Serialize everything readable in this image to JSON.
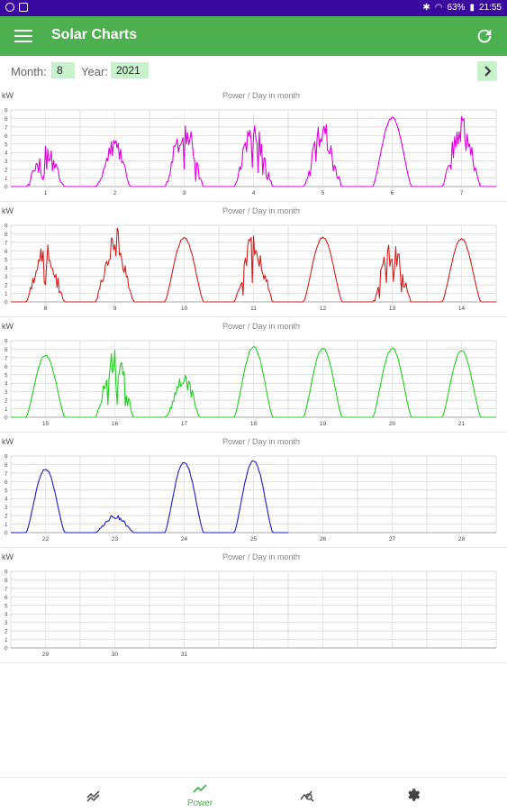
{
  "status_bar": {
    "battery": "63%",
    "time": "21:55"
  },
  "app": {
    "title": "Solar Charts"
  },
  "controls": {
    "month_label": "Month:",
    "month_value": "8",
    "year_label": "Year:",
    "year_value": "2021"
  },
  "bottom_nav": {
    "active_label": "Power"
  },
  "chart_data": [
    {
      "type": "line",
      "title": "Power / Day in month",
      "ylabel": "kW",
      "ylim": [
        0,
        9
      ],
      "yticks": [
        "0",
        "1",
        "2",
        "3",
        "4",
        "5",
        "6",
        "7",
        "8",
        "9"
      ],
      "day_labels": [
        "1",
        "2",
        "3",
        "4",
        "5",
        "6",
        "7"
      ],
      "color": "#e000e0",
      "series": [
        {
          "day": "1",
          "peak": 5.2,
          "profile": "spiky"
        },
        {
          "day": "2",
          "peak": 8.7,
          "profile": "late-peak"
        },
        {
          "day": "3",
          "peak": 8.5,
          "profile": "spiky"
        },
        {
          "day": "4",
          "peak": 8.3,
          "profile": "spiky"
        },
        {
          "day": "5",
          "peak": 8.0,
          "profile": "spiky"
        },
        {
          "day": "6",
          "peak": 8.2,
          "profile": "smooth"
        },
        {
          "day": "7",
          "peak": 8.3,
          "profile": "spiky"
        }
      ]
    },
    {
      "type": "line",
      "title": "Power / Day in month",
      "ylabel": "kW",
      "ylim": [
        0,
        9
      ],
      "yticks": [
        "0",
        "1",
        "2",
        "3",
        "4",
        "5",
        "6",
        "7",
        "8",
        "9"
      ],
      "day_labels": [
        "8",
        "9",
        "10",
        "11",
        "12",
        "13",
        "14"
      ],
      "color": "#d42020",
      "series": [
        {
          "day": "8",
          "peak": 7.6,
          "profile": "spiky"
        },
        {
          "day": "9",
          "peak": 8.9,
          "profile": "spiky"
        },
        {
          "day": "10",
          "peak": 7.7,
          "profile": "smooth"
        },
        {
          "day": "11",
          "peak": 8.4,
          "profile": "spiky"
        },
        {
          "day": "12",
          "peak": 7.7,
          "profile": "smooth"
        },
        {
          "day": "13",
          "peak": 7.7,
          "profile": "spiky"
        },
        {
          "day": "14",
          "peak": 7.5,
          "profile": "smooth"
        }
      ]
    },
    {
      "type": "line",
      "title": "Power / Day in month",
      "ylabel": "kW",
      "ylim": [
        0,
        9
      ],
      "yticks": [
        "0",
        "1",
        "2",
        "3",
        "4",
        "5",
        "6",
        "7",
        "8",
        "9"
      ],
      "day_labels": [
        "15",
        "16",
        "17",
        "18",
        "19",
        "20",
        "21"
      ],
      "color": "#22d022",
      "series": [
        {
          "day": "15",
          "peak": 7.4,
          "profile": "smooth"
        },
        {
          "day": "16",
          "peak": 8.3,
          "profile": "spiky"
        },
        {
          "day": "17",
          "peak": 8.2,
          "profile": "late-peak"
        },
        {
          "day": "18",
          "peak": 8.4,
          "profile": "smooth"
        },
        {
          "day": "19",
          "peak": 8.2,
          "profile": "smooth"
        },
        {
          "day": "20",
          "peak": 8.2,
          "profile": "smooth"
        },
        {
          "day": "21",
          "peak": 7.9,
          "profile": "smooth"
        }
      ]
    },
    {
      "type": "line",
      "title": "Power / Day in month",
      "ylabel": "kW",
      "ylim": [
        0,
        9
      ],
      "yticks": [
        "0",
        "1",
        "2",
        "3",
        "4",
        "5",
        "6",
        "7",
        "8",
        "9"
      ],
      "day_labels": [
        "22",
        "23",
        "24",
        "25",
        "26",
        "27",
        "28"
      ],
      "color": "#1a1ad0",
      "series": [
        {
          "day": "22",
          "peak": 7.6,
          "profile": "smooth"
        },
        {
          "day": "23",
          "peak": 2.2,
          "profile": "low"
        },
        {
          "day": "24",
          "peak": 8.4,
          "profile": "smooth"
        },
        {
          "day": "25",
          "peak": 8.6,
          "profile": "smooth"
        }
      ]
    },
    {
      "type": "line",
      "title": "Power / Day in month",
      "ylabel": "kW",
      "ylim": [
        0,
        9
      ],
      "yticks": [
        "0",
        "1",
        "2",
        "3",
        "4",
        "5",
        "6",
        "7",
        "8",
        "9"
      ],
      "day_labels": [
        "29",
        "30",
        "31"
      ],
      "color": "#444444",
      "series": []
    }
  ]
}
